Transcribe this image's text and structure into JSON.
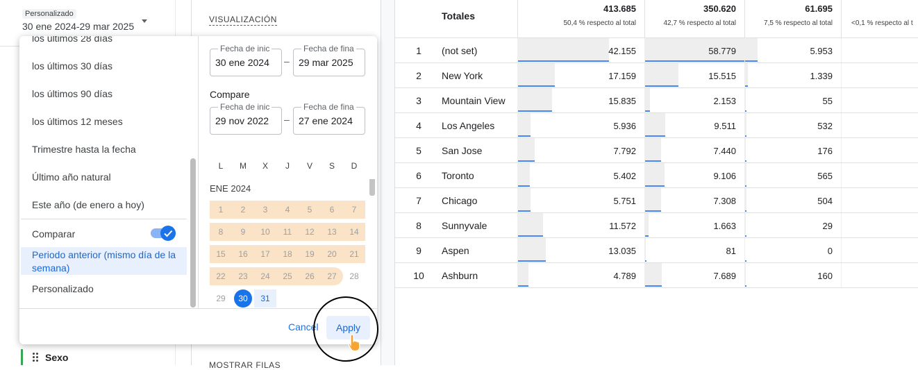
{
  "sidebar": {
    "chip": "Personalizado",
    "date_range": "30 ene 2024-29 mar 2025",
    "dimension": "Sexo"
  },
  "panel": {
    "visualization": "VISUALIZACIÓN",
    "show_rows": "MOSTRAR FILAS"
  },
  "date_picker": {
    "presets": [
      "los últimos 28 días",
      "los últimos 30 días",
      "los últimos 90 días",
      "los últimos 12 meses",
      "Trimestre hasta la fecha",
      "Último año natural",
      "Este año (de enero a hoy)"
    ],
    "compare_label": "Comparar",
    "compare_options": [
      "Periodo anterior (mismo día de la semana)",
      "Personalizado"
    ],
    "range": {
      "start_label": "Fecha de inic",
      "start": "30 ene 2024",
      "separator": "–",
      "end_label": "Fecha de fina",
      "end": "29 mar 2025"
    },
    "compare_title": "Compare",
    "compare_range": {
      "start_label": "Fecha de inic",
      "start": "29 nov 2022",
      "separator": "–",
      "end_label": "Fecha de fina",
      "end": "27 ene 2024"
    },
    "weekdays": [
      "L",
      "M",
      "X",
      "J",
      "V",
      "S",
      "D"
    ],
    "month": "ENE 2024",
    "days": [
      "1",
      "2",
      "3",
      "4",
      "5",
      "6",
      "7",
      "8",
      "9",
      "10",
      "11",
      "12",
      "13",
      "14",
      "15",
      "16",
      "17",
      "18",
      "19",
      "20",
      "21",
      "22",
      "23",
      "24",
      "25",
      "26",
      "27",
      "28",
      "29",
      "30",
      "31"
    ],
    "cancel": "Cancel",
    "apply": "Apply"
  },
  "table": {
    "header": "Totales",
    "totals": [
      {
        "value": "413.685",
        "note": "50,4 % respecto al total"
      },
      {
        "value": "350.620",
        "note": "42,7 % respecto al total"
      },
      {
        "value": "61.695",
        "note": "7,5 % respecto al total"
      },
      {
        "note": "<0,1 % respecto al t"
      }
    ],
    "rows": [
      {
        "rank": "1",
        "city": "(not set)",
        "cells": [
          {
            "value": 42155,
            "label": "42.155"
          },
          {
            "value": 58779,
            "label": "58.779"
          },
          {
            "value": 5953,
            "label": "5.953"
          }
        ]
      },
      {
        "rank": "2",
        "city": "New York",
        "cells": [
          {
            "value": 17159,
            "label": "17.159"
          },
          {
            "value": 15515,
            "label": "15.515"
          },
          {
            "value": 1339,
            "label": "1.339"
          }
        ]
      },
      {
        "rank": "3",
        "city": "Mountain View",
        "cells": [
          {
            "value": 15835,
            "label": "15.835"
          },
          {
            "value": 2153,
            "label": "2.153"
          },
          {
            "value": 55,
            "label": "55"
          }
        ]
      },
      {
        "rank": "4",
        "city": "Los Angeles",
        "cells": [
          {
            "value": 5936,
            "label": "5.936"
          },
          {
            "value": 9511,
            "label": "9.511"
          },
          {
            "value": 532,
            "label": "532"
          }
        ]
      },
      {
        "rank": "5",
        "city": "San Jose",
        "cells": [
          {
            "value": 7792,
            "label": "7.792"
          },
          {
            "value": 7440,
            "label": "7.440"
          },
          {
            "value": 176,
            "label": "176"
          }
        ]
      },
      {
        "rank": "6",
        "city": "Toronto",
        "cells": [
          {
            "value": 5402,
            "label": "5.402"
          },
          {
            "value": 9106,
            "label": "9.106"
          },
          {
            "value": 565,
            "label": "565"
          }
        ]
      },
      {
        "rank": "7",
        "city": "Chicago",
        "cells": [
          {
            "value": 5751,
            "label": "5.751"
          },
          {
            "value": 7308,
            "label": "7.308"
          },
          {
            "value": 504,
            "label": "504"
          }
        ]
      },
      {
        "rank": "8",
        "city": "Sunnyvale",
        "cells": [
          {
            "value": 11572,
            "label": "11.572"
          },
          {
            "value": 1663,
            "label": "1.663"
          },
          {
            "value": 29,
            "label": "29"
          }
        ]
      },
      {
        "rank": "9",
        "city": "Aspen",
        "cells": [
          {
            "value": 13035,
            "label": "13.035"
          },
          {
            "value": 81,
            "label": "81"
          },
          {
            "value": 0,
            "label": "0"
          }
        ]
      },
      {
        "rank": "10",
        "city": "Ashburn",
        "cells": [
          {
            "value": 4789,
            "label": "4.789"
          },
          {
            "value": 7689,
            "label": "7.689"
          },
          {
            "value": 160,
            "label": "160"
          }
        ]
      }
    ]
  }
}
